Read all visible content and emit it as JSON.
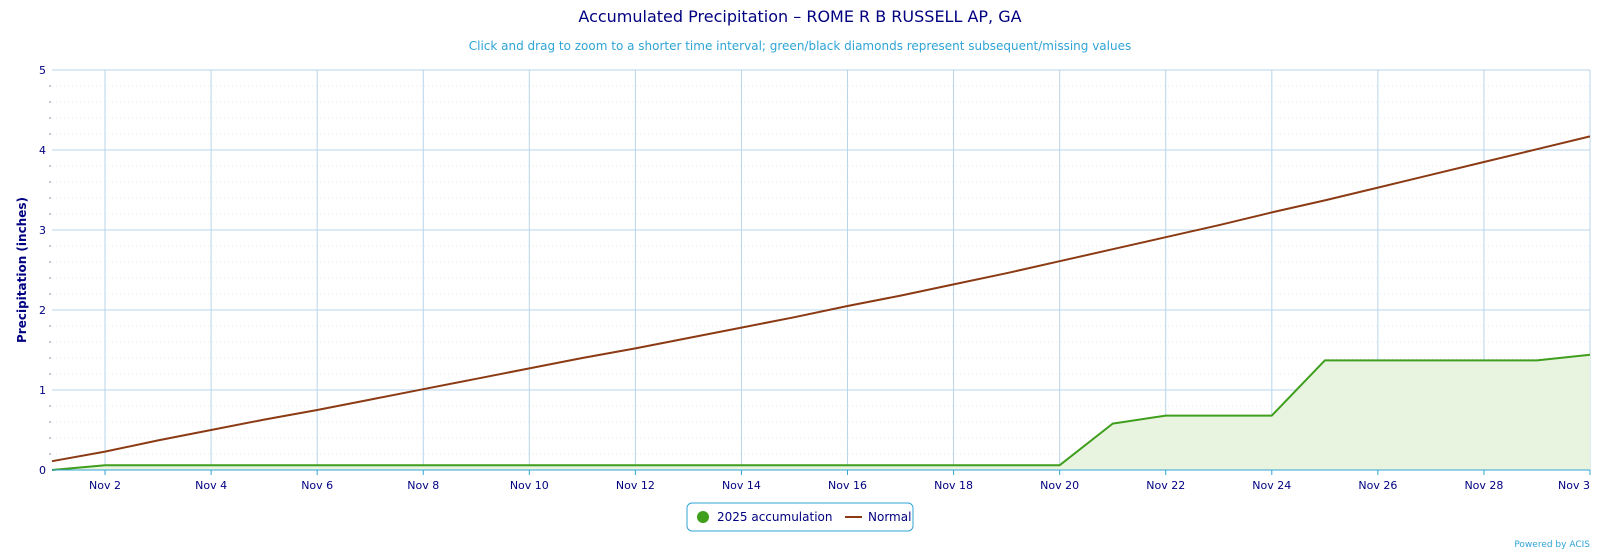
{
  "chart_data": {
    "type": "line",
    "title": "Accumulated Precipitation – ROME R B RUSSELL AP, GA",
    "subtitle": "Click and drag to zoom to a shorter time interval; green/black diamonds represent subsequent/missing values",
    "ylabel": "Precipitation (inches)",
    "xlabel": "",
    "ylim": [
      0,
      5
    ],
    "yticks": [
      0,
      1,
      2,
      3,
      4,
      5
    ],
    "xlim": [
      1,
      30
    ],
    "xticks": [
      2,
      4,
      6,
      8,
      10,
      12,
      14,
      16,
      18,
      20,
      22,
      24,
      26,
      28,
      30
    ],
    "xtick_labels": [
      "Nov 2",
      "Nov 4",
      "Nov 6",
      "Nov 8",
      "Nov 10",
      "Nov 12",
      "Nov 14",
      "Nov 16",
      "Nov 18",
      "Nov 20",
      "Nov 22",
      "Nov 24",
      "Nov 26",
      "Nov 28",
      "Nov 3"
    ],
    "x": [
      1,
      2,
      3,
      4,
      5,
      6,
      7,
      8,
      9,
      10,
      11,
      12,
      13,
      14,
      15,
      16,
      17,
      18,
      19,
      20,
      21,
      22,
      23,
      24,
      25,
      26,
      27,
      28,
      29,
      30
    ],
    "series": [
      {
        "name": "2025 accumulation",
        "color": "#3f9e1c",
        "fill": "#e8f3e0",
        "values": [
          0.0,
          0.06,
          0.06,
          0.06,
          0.06,
          0.06,
          0.06,
          0.06,
          0.06,
          0.06,
          0.06,
          0.06,
          0.06,
          0.06,
          0.06,
          0.06,
          0.06,
          0.06,
          0.06,
          0.06,
          0.58,
          0.68,
          0.68,
          0.68,
          1.37,
          1.37,
          1.37,
          1.37,
          1.37,
          1.44
        ]
      },
      {
        "name": "Normal",
        "color": "#8b3a14",
        "values": [
          0.11,
          0.23,
          0.37,
          0.5,
          0.63,
          0.75,
          0.88,
          1.01,
          1.14,
          1.27,
          1.4,
          1.52,
          1.65,
          1.78,
          1.91,
          2.05,
          2.18,
          2.32,
          2.46,
          2.61,
          2.76,
          2.91,
          3.06,
          3.22,
          3.37,
          3.53,
          3.69,
          3.85,
          4.01,
          4.17
        ]
      }
    ],
    "legend": {
      "position": "bottom-center",
      "items": [
        "2025 accumulation",
        "Normal"
      ]
    },
    "grid": true,
    "credit": "Powered by ACIS"
  }
}
